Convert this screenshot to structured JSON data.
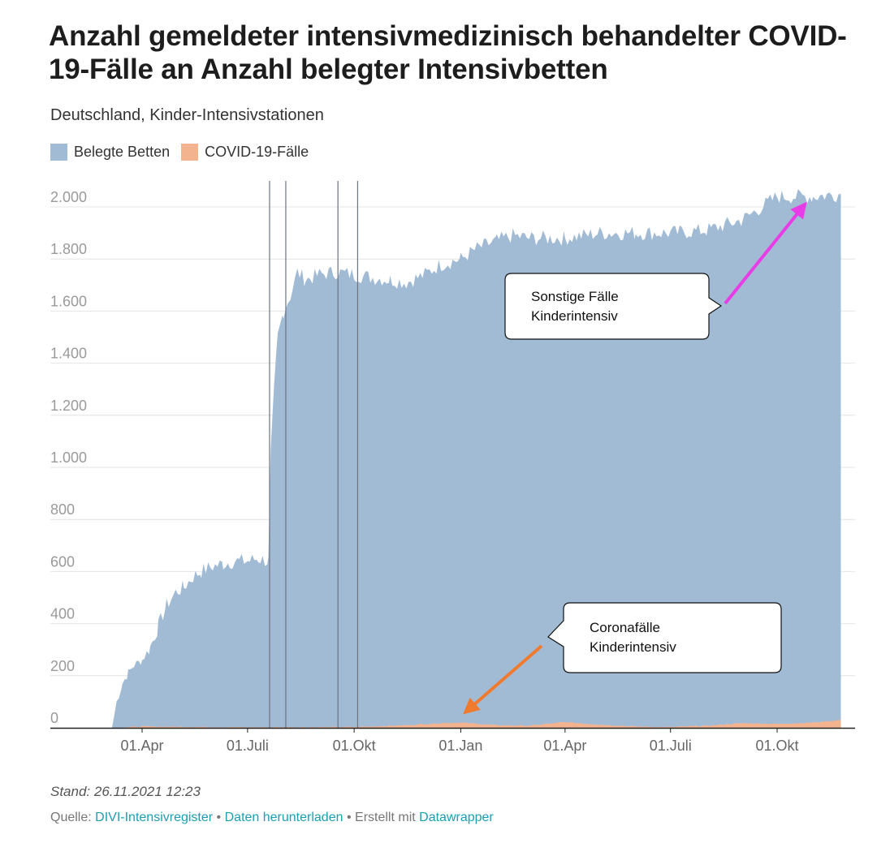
{
  "title": "Anzahl gemeldeter intensivmedizinisch behandelter COVID-19-Fälle an Anzahl belegter Intensivbetten",
  "subtitle": "Deutschland, Kinder-Intensivstationen",
  "legend": [
    {
      "label": "Belegte Betten",
      "color": "#a2bbd5"
    },
    {
      "label": "COVID-19-Fälle",
      "color": "#f3b38f"
    }
  ],
  "footer": {
    "stand": "Stand: 26.11.2021 12:23",
    "source_prefix": "Quelle:",
    "source_link": "DIVI-Intensivregister",
    "separator": "•",
    "download_link": "Daten herunterladen",
    "created_prefix": "Erstellt mit",
    "created_link": "Datawrapper"
  },
  "chart_data": {
    "type": "area",
    "title": "",
    "xlabel": "",
    "ylabel": "",
    "x_range": [
      "2020-03-06",
      "2021-11-25"
    ],
    "ylim": [
      0,
      2000
    ],
    "yticks": [
      0,
      200,
      400,
      600,
      800,
      1000,
      1200,
      1400,
      1600,
      1800,
      2000
    ],
    "ytick_labels": [
      "0",
      "200",
      "400",
      "600",
      "800",
      "1.000",
      "1.200",
      "1.400",
      "1.600",
      "1.800",
      "2.000"
    ],
    "xticks": [
      "2020-04-01",
      "2020-07-01",
      "2020-10-01",
      "2021-01-01",
      "2021-04-01",
      "2021-07-01",
      "2021-10-01"
    ],
    "xtick_labels": [
      "01.Apr",
      "01.Juli",
      "01.Okt",
      "01.Jan",
      "01.Apr",
      "01.Juli",
      "01.Okt"
    ],
    "grid": true,
    "legend_position": "top-left",
    "vertical_lines": [
      "2020-07-20",
      "2020-08-03",
      "2020-09-17",
      "2020-10-04"
    ],
    "series": [
      {
        "name": "Belegte Betten",
        "color": "#a2bbd5",
        "points": [
          [
            "2020-03-06",
            0
          ],
          [
            "2020-03-10",
            100
          ],
          [
            "2020-03-15",
            170
          ],
          [
            "2020-03-20",
            210
          ],
          [
            "2020-03-25",
            240
          ],
          [
            "2020-04-01",
            260
          ],
          [
            "2020-04-08",
            310
          ],
          [
            "2020-04-15",
            390
          ],
          [
            "2020-04-22",
            470
          ],
          [
            "2020-04-30",
            520
          ],
          [
            "2020-05-07",
            540
          ],
          [
            "2020-05-15",
            580
          ],
          [
            "2020-05-22",
            600
          ],
          [
            "2020-06-01",
            620
          ],
          [
            "2020-06-10",
            630
          ],
          [
            "2020-06-20",
            640
          ],
          [
            "2020-07-01",
            640
          ],
          [
            "2020-07-10",
            650
          ],
          [
            "2020-07-19",
            640
          ],
          [
            "2020-07-21",
            1050
          ],
          [
            "2020-07-24",
            1300
          ],
          [
            "2020-07-27",
            1500
          ],
          [
            "2020-08-01",
            1600
          ],
          [
            "2020-08-07",
            1660
          ],
          [
            "2020-08-13",
            1750
          ],
          [
            "2020-08-20",
            1720
          ],
          [
            "2020-09-01",
            1740
          ],
          [
            "2020-09-15",
            1750
          ],
          [
            "2020-10-01",
            1740
          ],
          [
            "2020-10-15",
            1730
          ],
          [
            "2020-11-01",
            1720
          ],
          [
            "2020-11-15",
            1710
          ],
          [
            "2020-12-01",
            1740
          ],
          [
            "2020-12-15",
            1780
          ],
          [
            "2021-01-01",
            1800
          ],
          [
            "2021-01-15",
            1840
          ],
          [
            "2021-02-01",
            1870
          ],
          [
            "2021-02-15",
            1890
          ],
          [
            "2021-03-01",
            1880
          ],
          [
            "2021-04-01",
            1880
          ],
          [
            "2021-05-01",
            1900
          ],
          [
            "2021-06-01",
            1900
          ],
          [
            "2021-07-01",
            1900
          ],
          [
            "2021-08-01",
            1910
          ],
          [
            "2021-09-01",
            1950
          ],
          [
            "2021-10-01",
            2040
          ],
          [
            "2021-11-01",
            2040
          ],
          [
            "2021-11-25",
            2050
          ]
        ]
      },
      {
        "name": "COVID-19-Fälle",
        "color": "#f3b38f",
        "points": [
          [
            "2020-03-06",
            0
          ],
          [
            "2020-04-01",
            5
          ],
          [
            "2020-07-01",
            2
          ],
          [
            "2020-10-01",
            3
          ],
          [
            "2020-11-15",
            10
          ],
          [
            "2020-12-15",
            18
          ],
          [
            "2021-01-01",
            20
          ],
          [
            "2021-02-01",
            10
          ],
          [
            "2021-03-01",
            8
          ],
          [
            "2021-04-01",
            22
          ],
          [
            "2021-05-01",
            12
          ],
          [
            "2021-06-01",
            5
          ],
          [
            "2021-07-01",
            3
          ],
          [
            "2021-08-01",
            8
          ],
          [
            "2021-09-01",
            18
          ],
          [
            "2021-10-01",
            15
          ],
          [
            "2021-11-01",
            20
          ],
          [
            "2021-11-25",
            30
          ]
        ]
      }
    ],
    "annotations": [
      {
        "text_line1": "Sonstige Fälle",
        "text_line2": "Kinderintensiv",
        "arrow_color": "#e83ce6",
        "target": [
          "2021-10-25",
          2010
        ]
      },
      {
        "text_line1": "Coronafälle",
        "text_line2": "Kinderintensiv",
        "arrow_color": "#f07a2e",
        "target": [
          "2021-01-05",
          60
        ]
      }
    ]
  }
}
